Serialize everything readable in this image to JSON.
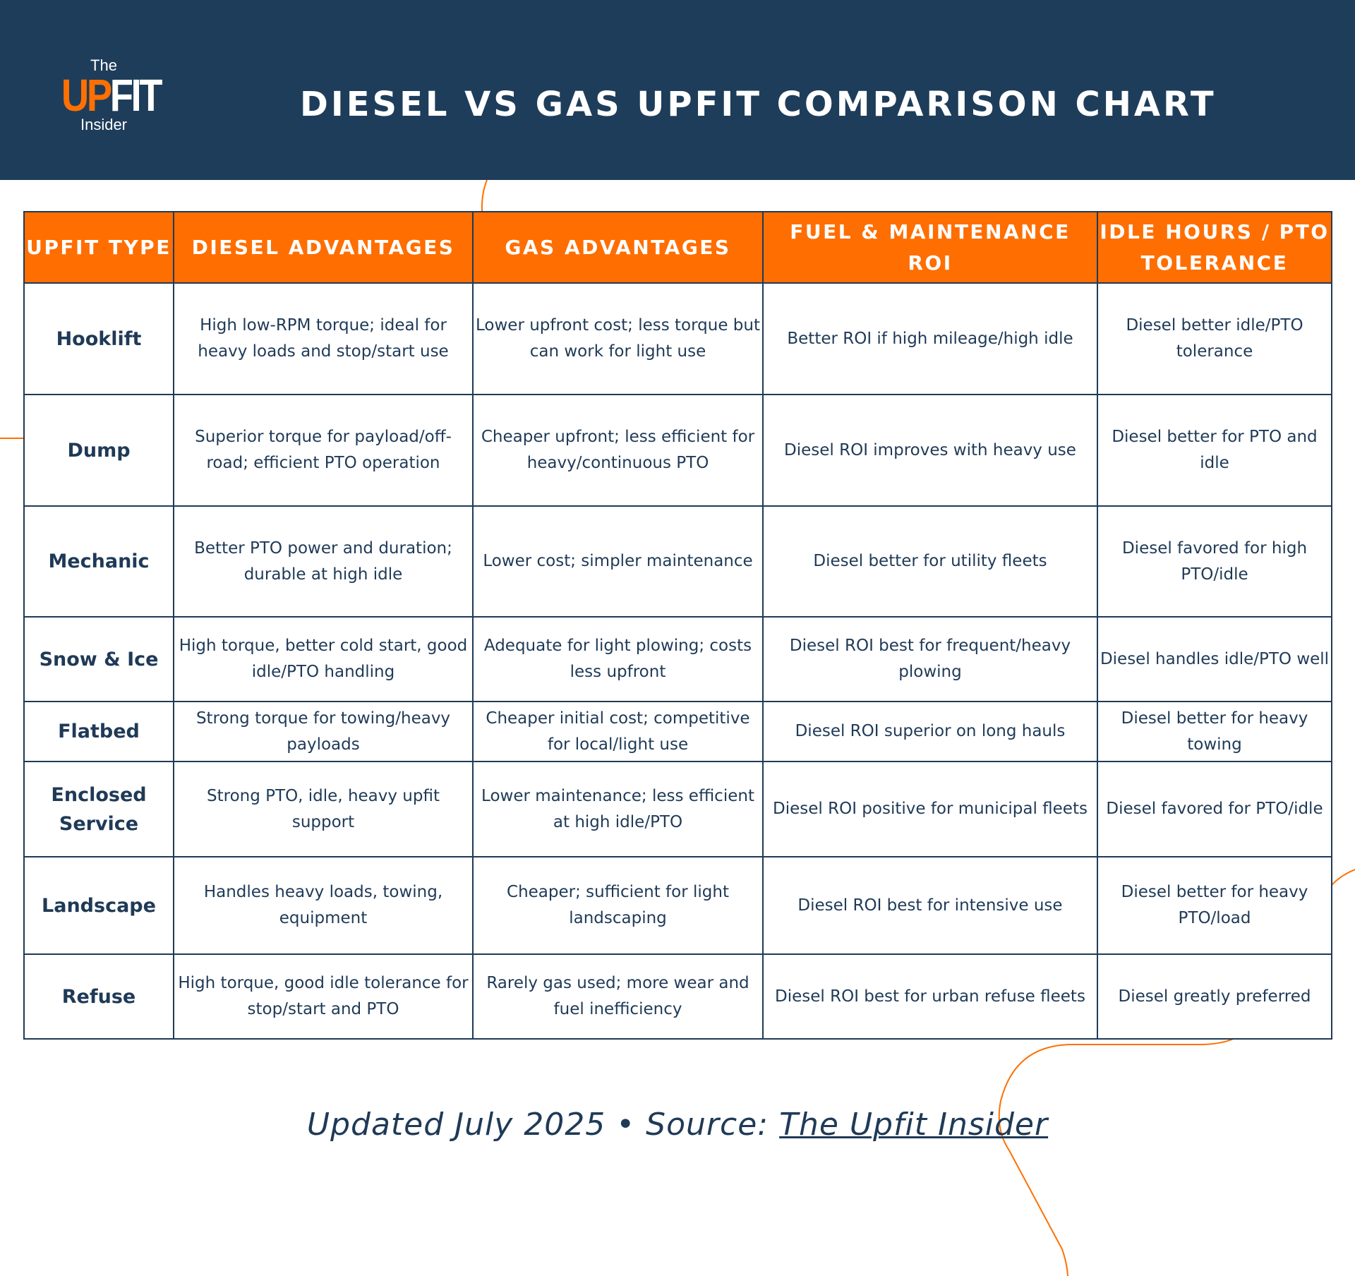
{
  "header": {
    "logo": {
      "the": "The",
      "up": "UP",
      "fit": "FIT",
      "insider": "Insider"
    },
    "title": "DIESEL VS GAS UPFIT COMPARISON CHART"
  },
  "colors": {
    "navy": "#1e3d5a",
    "orange": "#ff6e00",
    "text": "#1f3a57"
  },
  "table": {
    "columns": [
      "UPFIT TYPE",
      "DIESEL ADVANTAGES",
      "GAS ADVANTAGES",
      "FUEL & MAINTENANCE ROI",
      "IDLE HOURS / PTO TOLERANCE"
    ],
    "rows": [
      [
        "Hooklift",
        "High low-RPM torque; ideal for heavy loads and stop/start use",
        "Lower upfront cost; less torque but can work for light use",
        "Better ROI if high mileage/high idle",
        "Diesel better idle/PTO tolerance"
      ],
      [
        "Dump",
        "Superior torque for payload/off-road; efficient PTO operation",
        "Cheaper upfront; less efficient for heavy/continuous PTO",
        "Diesel ROI improves with heavy use",
        "Diesel better for PTO and idle"
      ],
      [
        "Mechanic",
        "Better PTO power and duration; durable at high idle",
        "Lower cost; simpler maintenance",
        "Diesel better for utility fleets",
        "Diesel favored for high PTO/idle"
      ],
      [
        "Snow & Ice",
        "High torque, better cold start, good idle/PTO handling",
        "Adequate for light plowing; costs less upfront",
        "Diesel ROI best for frequent/heavy plowing",
        "Diesel handles idle/PTO well"
      ],
      [
        "Flatbed",
        "Strong torque for towing/heavy payloads",
        "Cheaper initial cost; competitive for local/light use",
        "Diesel ROI superior on long hauls",
        "Diesel better for heavy towing"
      ],
      [
        "Enclosed Service",
        "Strong PTO, idle, heavy upfit support",
        "Lower maintenance; less efficient at high idle/PTO",
        "Diesel ROI positive for municipal fleets",
        "Diesel favored for PTO/idle"
      ],
      [
        "Landscape",
        "Handles heavy loads, towing, equipment",
        "Cheaper; sufficient for light landscaping",
        "Diesel ROI best for intensive use",
        "Diesel better for heavy PTO/load"
      ],
      [
        "Refuse",
        "High torque, good idle tolerance for stop/start and PTO",
        "Rarely gas used; more wear and fuel inefficiency",
        "Diesel ROI best for urban refuse fleets",
        "Diesel greatly preferred"
      ]
    ]
  },
  "footer": {
    "prefix": "Updated July 2025 • Source: ",
    "source_link": "The Upfit Insider"
  }
}
